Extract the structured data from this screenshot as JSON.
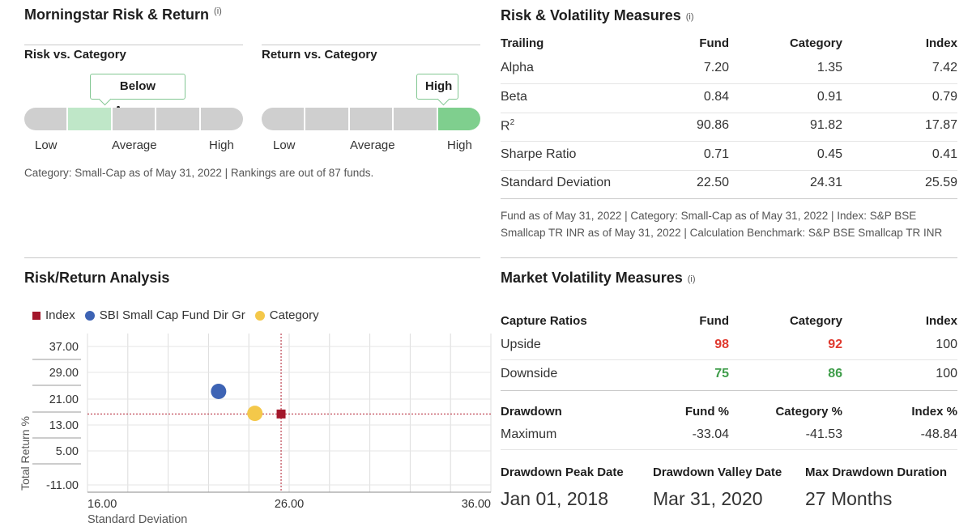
{
  "risk_return": {
    "title": "Morningstar Risk & Return",
    "info": "(i)",
    "risk_label": "Risk vs. Category",
    "risk_value": "Below Average",
    "return_label": "Return vs. Category",
    "return_value": "High",
    "scale": {
      "low": "Low",
      "average": "Average",
      "high": "High"
    },
    "note": "Category: Small-Cap as of May 31, 2022 | Rankings are out of 87 funds."
  },
  "volatility": {
    "title": "Risk & Volatility Measures",
    "info": "(i)",
    "headers": [
      "Trailing",
      "Fund",
      "Category",
      "Index"
    ],
    "rows": [
      {
        "label": "Alpha",
        "sup": "",
        "fund": "7.20",
        "category": "1.35",
        "index": "7.42"
      },
      {
        "label": "Beta",
        "sup": "",
        "fund": "0.84",
        "category": "0.91",
        "index": "0.79"
      },
      {
        "label": "R",
        "sup": "2",
        "fund": "90.86",
        "category": "91.82",
        "index": "17.87"
      },
      {
        "label": "Sharpe Ratio",
        "sup": "",
        "fund": "0.71",
        "category": "0.45",
        "index": "0.41"
      },
      {
        "label": "Standard Deviation",
        "sup": "",
        "fund": "22.50",
        "category": "24.31",
        "index": "25.59"
      }
    ],
    "note_line1": "Fund as of May 31, 2022 | Category: Small-Cap as of May 31, 2022 | Index: S&P BSE",
    "note_line2": "Smallcap TR INR as of May 31, 2022 | Calculation Benchmark: S&P BSE Smallcap TR INR"
  },
  "analysis": {
    "title": "Risk/Return Analysis",
    "legend": {
      "index": "Index",
      "fund": "SBI Small Cap Fund Dir Gr",
      "category": "Category"
    },
    "colors": {
      "index": "#a3172b",
      "fund": "#3d63b4",
      "category": "#f4c84a",
      "crosshair": "#b01d2e"
    }
  },
  "chart_data": {
    "type": "scatter",
    "xlabel": "Standard Deviation",
    "ylabel": "Total Return %",
    "x_ticks": [
      "16.00",
      "26.00",
      "36.00"
    ],
    "y_ticks": [
      "37.00",
      "29.00",
      "21.00",
      "13.00",
      "5.00",
      "-11.00"
    ],
    "xlim": [
      16,
      36
    ],
    "points": [
      {
        "name": "SBI Small Cap Fund Dir Gr",
        "x": 22.5,
        "y": 23.3
      },
      {
        "name": "Category",
        "x": 24.3,
        "y": 16.6
      },
      {
        "name": "Index",
        "x": 25.6,
        "y": 16.4
      }
    ]
  },
  "market": {
    "title": "Market Volatility Measures",
    "info": "(i)",
    "capture_headers": [
      "Capture Ratios",
      "Fund",
      "Category",
      "Index"
    ],
    "upside": {
      "label": "Upside",
      "fund": "98",
      "category": "92",
      "index": "100"
    },
    "downside": {
      "label": "Downside",
      "fund": "75",
      "category": "86",
      "index": "100"
    },
    "drawdown_headers": [
      "Drawdown",
      "Fund %",
      "Category %",
      "Index %"
    ],
    "maximum": {
      "label": "Maximum",
      "fund": "-33.04",
      "category": "-41.53",
      "index": "-48.84"
    },
    "peak_label": "Drawdown Peak Date",
    "valley_label": "Drawdown Valley Date",
    "duration_label": "Max Drawdown Duration",
    "peak_value": "Jan 01, 2018",
    "valley_value": "Mar 31, 2020",
    "duration_value": "27 Months"
  }
}
